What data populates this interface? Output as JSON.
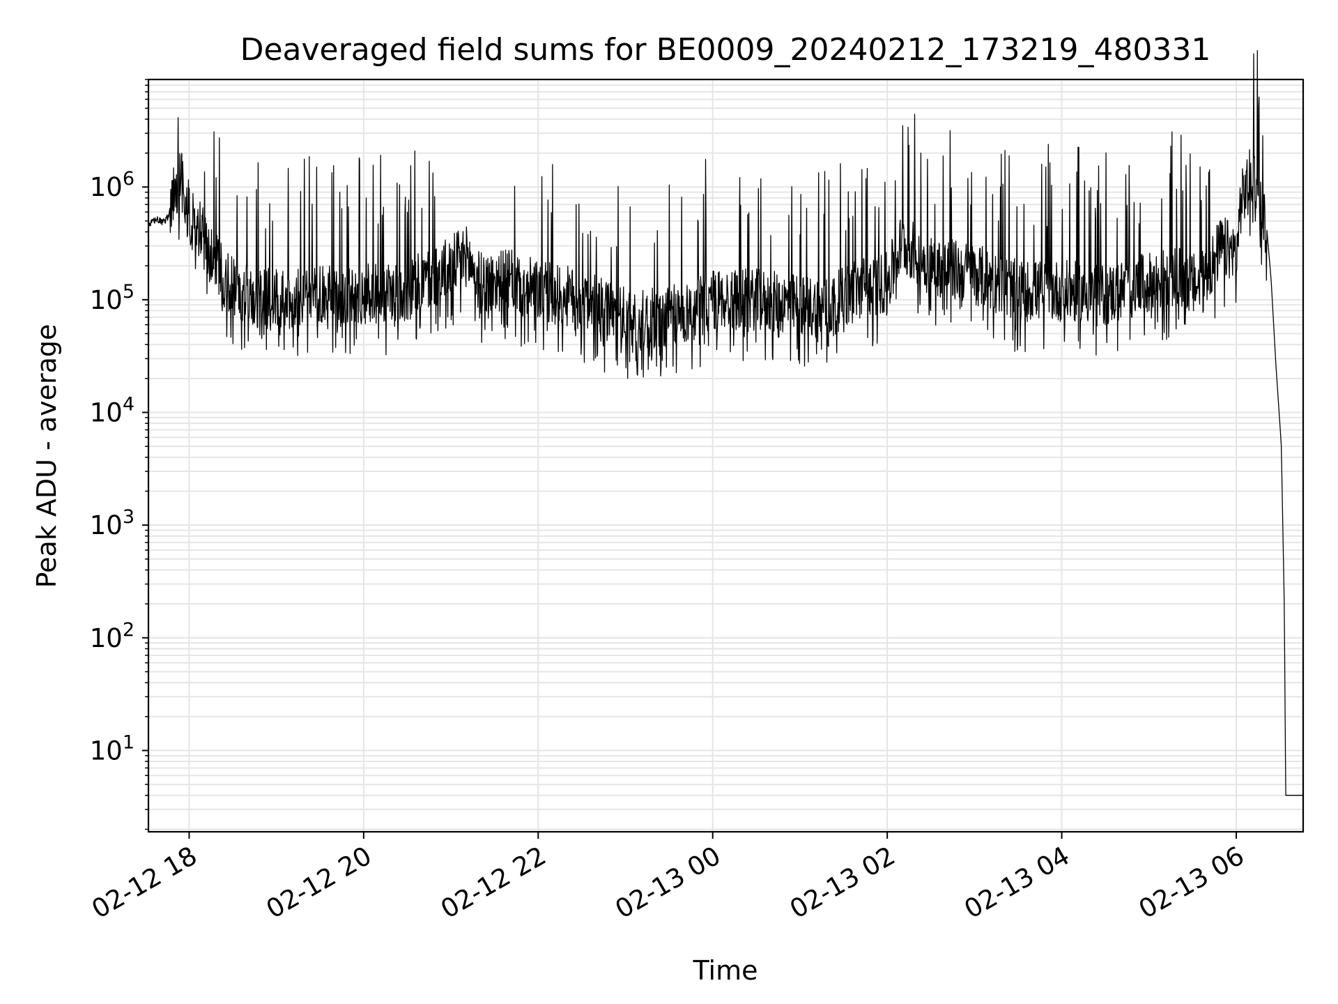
{
  "chart_data": {
    "type": "line",
    "title": "Deaveraged field sums for BE0009_20240212_173219_480331",
    "xlabel": "Time",
    "ylabel": "Peak ADU - average",
    "yscale": "log",
    "ylim": [
      1.9,
      9000000
    ],
    "xlim": [
      "2024-02-12 17:32",
      "2024-02-13 06:46"
    ],
    "grid": true,
    "line_color": "#000000",
    "grid_color": "#e5e5e5",
    "x_ticks": [
      {
        "t": "2024-02-12 18:00",
        "label": "02-12 18"
      },
      {
        "t": "2024-02-12 20:00",
        "label": "02-12 20"
      },
      {
        "t": "2024-02-12 22:00",
        "label": "02-12 22"
      },
      {
        "t": "2024-02-13 00:00",
        "label": "02-13 00"
      },
      {
        "t": "2024-02-13 02:00",
        "label": "02-13 02"
      },
      {
        "t": "2024-02-13 04:00",
        "label": "02-13 04"
      },
      {
        "t": "2024-02-13 06:00",
        "label": "02-13 06"
      }
    ],
    "y_ticks": [
      {
        "value": 10,
        "base": "10",
        "exp": "1"
      },
      {
        "value": 100,
        "base": "10",
        "exp": "2"
      },
      {
        "value": 1000,
        "base": "10",
        "exp": "3"
      },
      {
        "value": 10000,
        "base": "10",
        "exp": "4"
      },
      {
        "value": 100000,
        "base": "10",
        "exp": "5"
      },
      {
        "value": 1000000,
        "base": "10",
        "exp": "6"
      }
    ],
    "series": [
      {
        "points": [
          [
            "2024-02-12 17:32",
            450000
          ],
          [
            "2024-02-12 17:37",
            520000
          ],
          [
            "2024-02-12 17:42",
            480000
          ],
          [
            "2024-02-12 17:46",
            560000
          ],
          [
            "2024-02-12 17:50",
            900000
          ],
          [
            "2024-02-12 17:54",
            1300000
          ],
          [
            "2024-02-12 17:58",
            700000
          ],
          [
            "2024-02-12 18:02",
            500000
          ],
          [
            "2024-02-12 18:08",
            400000
          ],
          [
            "2024-02-12 18:15",
            250000
          ],
          [
            "2024-02-12 18:25",
            150000
          ],
          [
            "2024-02-12 18:40",
            110000
          ],
          [
            "2024-02-12 19:00",
            100000
          ],
          [
            "2024-02-12 19:30",
            105000
          ],
          [
            "2024-02-12 20:00",
            110000
          ],
          [
            "2024-02-12 20:30",
            120000
          ],
          [
            "2024-02-12 21:00",
            200000
          ],
          [
            "2024-02-12 21:10",
            250000
          ],
          [
            "2024-02-12 21:20",
            140000
          ],
          [
            "2024-02-12 21:40",
            150000
          ],
          [
            "2024-02-12 22:00",
            120000
          ],
          [
            "2024-02-12 22:30",
            100000
          ],
          [
            "2024-02-12 22:50",
            75000
          ],
          [
            "2024-02-12 23:10",
            65000
          ],
          [
            "2024-02-12 23:40",
            75000
          ],
          [
            "2024-02-13 00:00",
            100000
          ],
          [
            "2024-02-13 00:30",
            100000
          ],
          [
            "2024-02-13 01:00",
            90000
          ],
          [
            "2024-02-13 01:20",
            85000
          ],
          [
            "2024-02-13 01:40",
            130000
          ],
          [
            "2024-02-13 02:00",
            140000
          ],
          [
            "2024-02-13 02:10",
            320000
          ],
          [
            "2024-02-13 02:30",
            200000
          ],
          [
            "2024-02-13 03:00",
            170000
          ],
          [
            "2024-02-13 03:30",
            120000
          ],
          [
            "2024-02-13 04:00",
            120000
          ],
          [
            "2024-02-13 04:30",
            110000
          ],
          [
            "2024-02-13 05:00",
            140000
          ],
          [
            "2024-02-13 05:20",
            160000
          ],
          [
            "2024-02-13 05:35",
            130000
          ],
          [
            "2024-02-13 05:50",
            300000
          ],
          [
            "2024-02-13 06:00",
            250000
          ],
          [
            "2024-02-13 06:03",
            700000
          ],
          [
            "2024-02-13 06:07",
            1000000
          ],
          [
            "2024-02-13 06:12",
            1400000
          ],
          [
            "2024-02-13 06:15",
            900000
          ],
          [
            "2024-02-13 06:18",
            600000
          ],
          [
            "2024-02-13 06:21",
            420000
          ],
          [
            "2024-02-13 06:24",
            150000
          ],
          [
            "2024-02-13 06:27",
            30000
          ],
          [
            "2024-02-13 06:31",
            5000
          ],
          [
            "2024-02-13 06:33",
            200
          ],
          [
            "2024-02-13 06:34",
            4
          ],
          [
            "2024-02-13 06:46",
            4
          ]
        ]
      }
    ]
  }
}
